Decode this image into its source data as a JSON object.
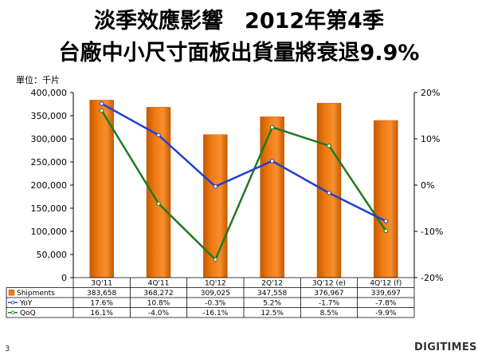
{
  "title_line1": "淡季效應影響　2012年第4季",
  "title_line2": "台廠中小尺寸面板出貨量將衰退9.9%",
  "unit_label": "單位：千片",
  "page_number": "3",
  "logo_text": "DIGITIMES",
  "colors": {
    "bar": "#f07a12",
    "bar_dark": "#c75a00",
    "yoy": "#1f3fd1",
    "qoq": "#1f7a1f"
  },
  "chart_data": {
    "type": "bar",
    "categories": [
      "3Q'11",
      "4Q'11",
      "1Q'12",
      "2Q'12",
      "3Q'12 (e)",
      "4Q'12 (f)"
    ],
    "series": [
      {
        "name": "Shipments",
        "type": "bar",
        "axis": "left",
        "values": [
          383658,
          368272,
          309025,
          347558,
          376967,
          339697
        ],
        "labels": [
          "383,658",
          "368,272",
          "309,025",
          "347,558",
          "376,967",
          "339,697"
        ]
      },
      {
        "name": "YoY",
        "type": "line",
        "axis": "right",
        "values": [
          17.6,
          10.8,
          -0.3,
          5.2,
          -1.7,
          -7.8
        ],
        "labels": [
          "17.6%",
          "10.8%",
          "-0.3%",
          "5.2%",
          "-1.7%",
          "-7.8%"
        ]
      },
      {
        "name": "QoQ",
        "type": "line",
        "axis": "right",
        "values": [
          16.1,
          -4.0,
          -16.1,
          12.5,
          8.5,
          -9.9
        ],
        "labels": [
          "16.1%",
          "-4.0%",
          "-16.1%",
          "12.5%",
          "8.5%",
          "-9.9%"
        ]
      }
    ],
    "left_axis": {
      "ylim": [
        0,
        400000
      ],
      "ticks": [
        "0",
        "50,000",
        "100,000",
        "150,000",
        "200,000",
        "250,000",
        "300,000",
        "350,000",
        "400,000"
      ]
    },
    "right_axis": {
      "ylim": [
        -20,
        20
      ],
      "ticks": [
        "-20%",
        "-10%",
        "0%",
        "10%",
        "20%"
      ]
    },
    "grid": false,
    "legend": "data-table-below"
  }
}
